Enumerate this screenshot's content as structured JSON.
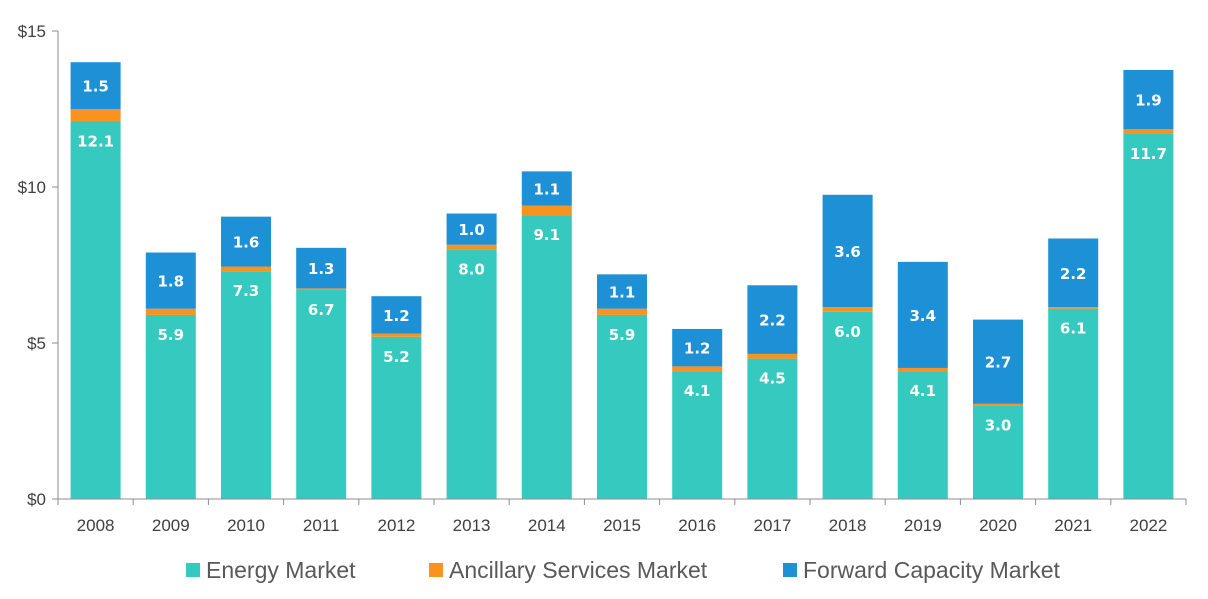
{
  "chart_data": {
    "type": "bar",
    "stacked": true,
    "categories": [
      "2008",
      "2009",
      "2010",
      "2011",
      "2012",
      "2013",
      "2014",
      "2015",
      "2016",
      "2017",
      "2018",
      "2019",
      "2020",
      "2021",
      "2022"
    ],
    "series": [
      {
        "name": "Energy Market",
        "color": "#36c9c0",
        "values": [
          12.1,
          5.9,
          7.3,
          6.7,
          5.2,
          8.0,
          9.1,
          5.9,
          4.1,
          4.5,
          6.0,
          4.1,
          3.0,
          6.1,
          11.7
        ],
        "labels": [
          "12.1",
          "5.9",
          "7.3",
          "6.7",
          "5.2",
          "8.0",
          "9.1",
          "5.9",
          "4.1",
          "4.5",
          "6.0",
          "4.1",
          "3.0",
          "6.1",
          "11.7"
        ]
      },
      {
        "name": "Ancillary Services Market",
        "color": "#f7931e",
        "values": [
          0.4,
          0.2,
          0.15,
          0.05,
          0.1,
          0.15,
          0.3,
          0.2,
          0.15,
          0.15,
          0.15,
          0.1,
          0.05,
          0.05,
          0.15
        ],
        "labels": [
          "",
          "",
          "",
          "",
          "",
          "",
          "",
          "",
          "",
          "",
          "",
          "",
          "",
          "",
          ""
        ]
      },
      {
        "name": "Forward Capacity Market",
        "color": "#1e90d6",
        "values": [
          1.5,
          1.8,
          1.6,
          1.3,
          1.2,
          1.0,
          1.1,
          1.1,
          1.2,
          2.2,
          3.6,
          3.4,
          2.7,
          2.2,
          1.9
        ],
        "labels": [
          "1.5",
          "1.8",
          "1.6",
          "1.3",
          "1.2",
          "1.0",
          "1.1",
          "1.1",
          "1.2",
          "2.2",
          "3.6",
          "3.4",
          "2.7",
          "2.2",
          "1.9"
        ]
      }
    ],
    "y_ticks": [
      0,
      5,
      10,
      15
    ],
    "y_tick_labels": [
      "$0",
      "$5",
      "$10",
      "$15"
    ],
    "ylim": [
      0,
      15
    ],
    "title": "",
    "xlabel": "",
    "ylabel": "",
    "legend_position": "bottom",
    "grid": false
  }
}
